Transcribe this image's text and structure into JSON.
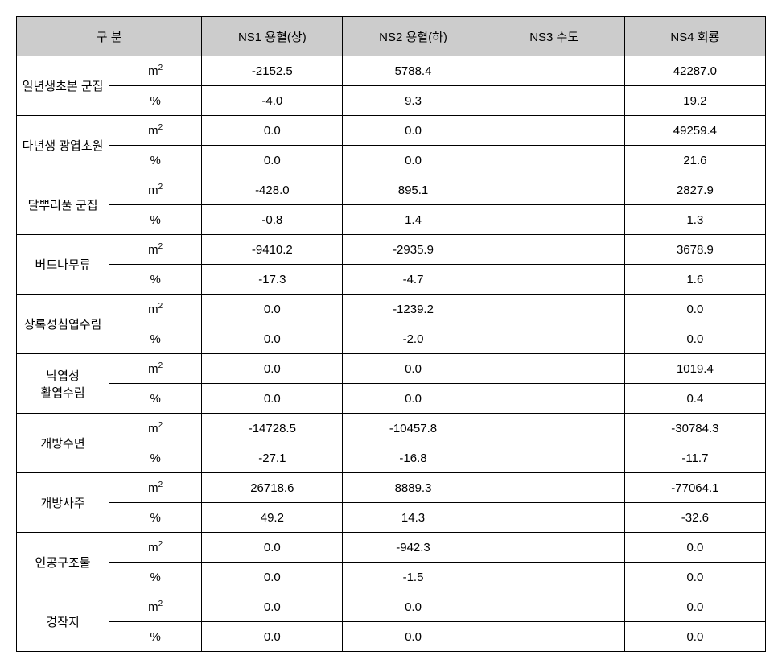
{
  "headers": {
    "category": "구 분",
    "ns1": "NS1 용혈(상)",
    "ns2": "NS2 용혈(하)",
    "ns3": "NS3 수도",
    "ns4": "NS4 회룡"
  },
  "units": {
    "m2": "m",
    "m2_sup": "2",
    "percent": "%"
  },
  "rows": [
    {
      "label": "일년생초본 군집",
      "m2": {
        "ns1": "-2152.5",
        "ns2": "5788.4",
        "ns3": "",
        "ns4": "42287.0"
      },
      "pct": {
        "ns1": "-4.0",
        "ns2": "9.3",
        "ns3": "",
        "ns4": "19.2"
      }
    },
    {
      "label": "다년생 광엽초원",
      "m2": {
        "ns1": "0.0",
        "ns2": "0.0",
        "ns3": "",
        "ns4": "49259.4"
      },
      "pct": {
        "ns1": "0.0",
        "ns2": "0.0",
        "ns3": "",
        "ns4": "21.6"
      }
    },
    {
      "label": "달뿌리풀 군집",
      "m2": {
        "ns1": "-428.0",
        "ns2": "895.1",
        "ns3": "",
        "ns4": "2827.9"
      },
      "pct": {
        "ns1": "-0.8",
        "ns2": "1.4",
        "ns3": "",
        "ns4": "1.3"
      }
    },
    {
      "label": "버드나무류",
      "m2": {
        "ns1": "-9410.2",
        "ns2": "-2935.9",
        "ns3": "",
        "ns4": "3678.9"
      },
      "pct": {
        "ns1": "-17.3",
        "ns2": "-4.7",
        "ns3": "",
        "ns4": "1.6"
      }
    },
    {
      "label": "상록성침엽수림",
      "m2": {
        "ns1": "0.0",
        "ns2": "-1239.2",
        "ns3": "",
        "ns4": "0.0"
      },
      "pct": {
        "ns1": "0.0",
        "ns2": "-2.0",
        "ns3": "",
        "ns4": "0.0"
      }
    },
    {
      "label": "낙엽성\n활엽수림",
      "m2": {
        "ns1": "0.0",
        "ns2": "0.0",
        "ns3": "",
        "ns4": "1019.4"
      },
      "pct": {
        "ns1": "0.0",
        "ns2": "0.0",
        "ns3": "",
        "ns4": "0.4"
      }
    },
    {
      "label": "개방수면",
      "m2": {
        "ns1": "-14728.5",
        "ns2": "-10457.8",
        "ns3": "",
        "ns4": "-30784.3"
      },
      "pct": {
        "ns1": "-27.1",
        "ns2": "-16.8",
        "ns3": "",
        "ns4": "-11.7"
      }
    },
    {
      "label": "개방사주",
      "m2": {
        "ns1": "26718.6",
        "ns2": "8889.3",
        "ns3": "",
        "ns4": "-77064.1"
      },
      "pct": {
        "ns1": "49.2",
        "ns2": "14.3",
        "ns3": "",
        "ns4": "-32.6"
      }
    },
    {
      "label": "인공구조물",
      "m2": {
        "ns1": "0.0",
        "ns2": "-942.3",
        "ns3": "",
        "ns4": "0.0"
      },
      "pct": {
        "ns1": "0.0",
        "ns2": "-1.5",
        "ns3": "",
        "ns4": "0.0"
      }
    },
    {
      "label": "경작지",
      "m2": {
        "ns1": "0.0",
        "ns2": "0.0",
        "ns3": "",
        "ns4": "0.0"
      },
      "pct": {
        "ns1": "0.0",
        "ns2": "0.0",
        "ns3": "",
        "ns4": "0.0"
      }
    }
  ],
  "styling": {
    "header_bg": "#cccccc",
    "border_color": "#000000",
    "font_size": 15,
    "cell_bg": "#ffffff"
  }
}
